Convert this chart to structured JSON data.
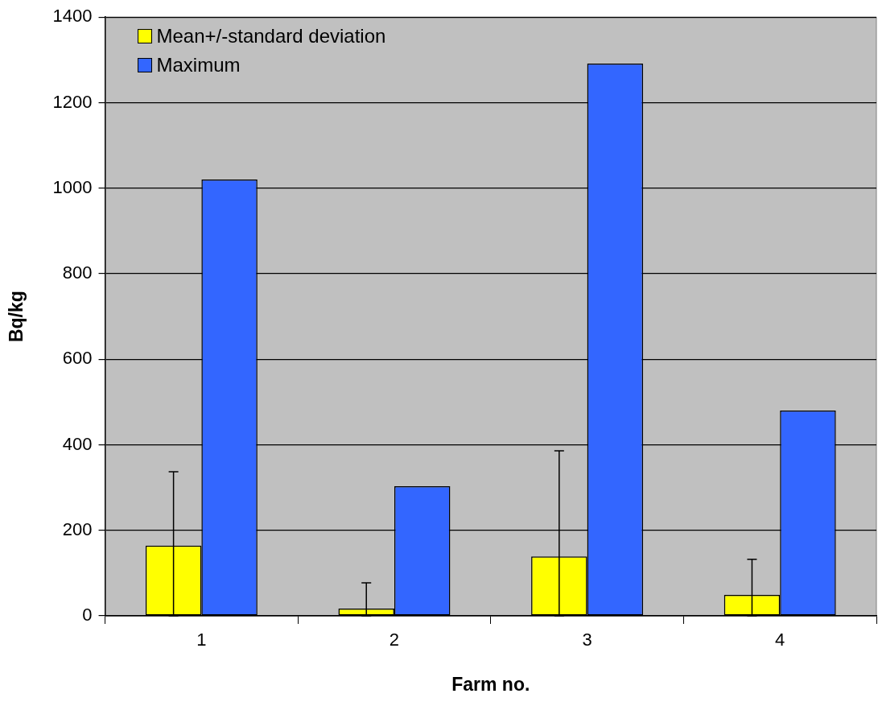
{
  "chart_data": {
    "type": "bar",
    "xlabel": "Farm no.",
    "ylabel": "Bq/kg",
    "categories": [
      "1",
      "2",
      "3",
      "4"
    ],
    "series": [
      {
        "name": "Mean+/-standard deviation",
        "color": "#ffff00",
        "values": [
          164,
          17,
          139,
          49
        ],
        "errors": [
          [
            0,
            337
          ],
          [
            0,
            77
          ],
          [
            0,
            386
          ],
          [
            0,
            132
          ]
        ]
      },
      {
        "name": "Maximum",
        "color": "#3366ff",
        "values": [
          1020,
          303,
          1291,
          480
        ]
      }
    ],
    "ylim": [
      0,
      1400
    ],
    "yticks": [
      0,
      200,
      400,
      600,
      800,
      1000,
      1200,
      1400
    ],
    "grid": "y",
    "legend": "top left"
  }
}
